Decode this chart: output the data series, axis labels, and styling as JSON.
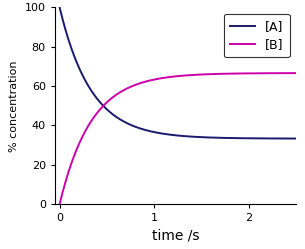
{
  "title": "",
  "xlabel": "time /s",
  "ylabel": "% concentration",
  "xlim": [
    -0.05,
    2.5
  ],
  "ylim": [
    0,
    100
  ],
  "xticks": [
    0,
    1,
    2
  ],
  "yticks": [
    0,
    20,
    40,
    60,
    80,
    100
  ],
  "color_A": "#1a1a6e",
  "color_B": "#cc00aa",
  "label_A": "[A]",
  "label_B": "[B]",
  "k_forward": 2.0,
  "k_reverse": 1.0,
  "A0": 100.0,
  "B0": 0.0,
  "t_max": 2.5,
  "n_points": 500,
  "legend_loc": "upper right",
  "background_color": "#ffffff",
  "linewidth": 1.4,
  "xlabel_fontsize": 10,
  "ylabel_fontsize": 8,
  "tick_fontsize": 8,
  "legend_fontsize": 9
}
